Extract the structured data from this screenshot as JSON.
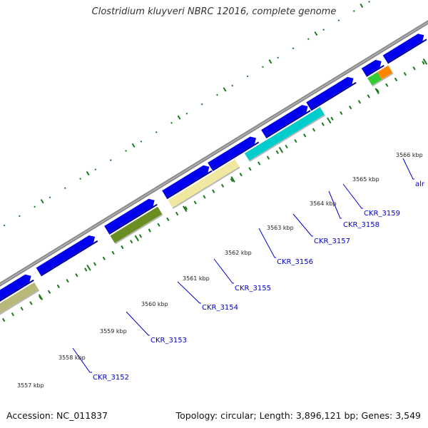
{
  "header": {
    "title": "Clostridium kluyveri NBRC 12016, complete genome"
  },
  "footer": {
    "accession": "Accession: NC_011837",
    "summary": "Topology: circular; Length: 3,896,121 bp; Genes: 3,549"
  },
  "colors": {
    "backbone": "#888888",
    "strand_gene": "#0000ee",
    "tick": "#1a7a1a",
    "label": "#0000cc",
    "ruler_text": "#222222"
  },
  "ruler_labels": [
    "3557 kbp",
    "3558 kbp",
    "3559 kbp",
    "3560 kbp",
    "3561 kbp",
    "3562 kbp",
    "3563 kbp",
    "3564 kbp",
    "3565 kbp",
    "3566 kbp"
  ],
  "gene_labels": [
    "CKR_3152",
    "CKR_3153",
    "CKR_3154",
    "CKR_3155",
    "CKR_3156",
    "CKR_3157",
    "CKR_3158",
    "CKR_3159",
    "alr"
  ],
  "feature_colors": [
    "#ff2090",
    "#b8b878",
    "#6b8e23",
    "#f0e8a0",
    "#00cccc",
    "#33cc33",
    "#ff8800",
    "#6b8e23"
  ]
}
